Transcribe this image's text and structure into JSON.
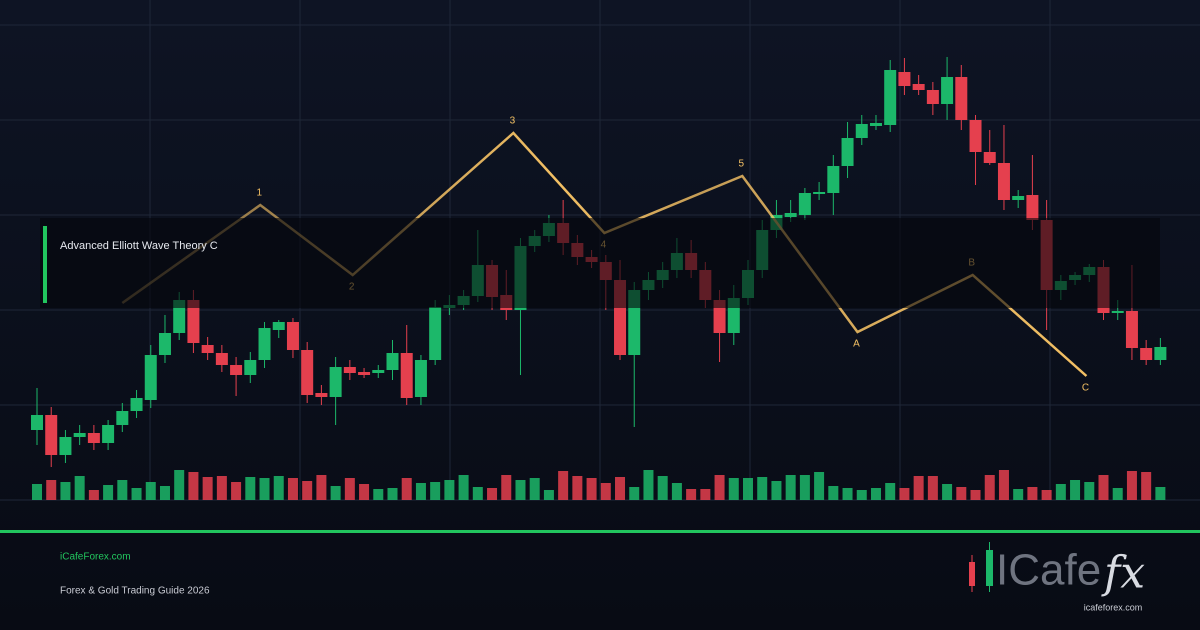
{
  "chart_data": {
    "type": "candlestick",
    "overlay_title": "Advanced Elliott Wave Theory C",
    "up_color": "#1cb86a",
    "down_color": "#e5404e",
    "open": [
      70,
      85,
      45,
      63,
      67,
      57,
      75,
      89,
      100,
      145,
      167,
      200,
      155,
      147,
      135,
      125,
      140,
      170,
      178,
      150,
      107,
      103,
      133,
      128,
      127,
      130,
      147,
      103,
      140,
      192,
      195,
      204,
      235,
      205,
      190,
      254,
      264,
      277,
      257,
      243,
      238,
      220,
      145,
      210,
      220,
      230,
      247,
      230,
      200,
      167,
      202,
      230,
      270,
      283,
      285,
      306,
      307,
      334,
      362,
      374,
      375,
      428,
      416,
      410,
      396,
      423,
      380,
      348,
      337,
      300,
      305,
      280,
      210,
      220,
      225,
      233,
      187,
      189,
      152,
      140
    ],
    "high": [
      112,
      93,
      70,
      75,
      75,
      80,
      97,
      110,
      155,
      185,
      208,
      210,
      163,
      155,
      143,
      148,
      178,
      180,
      182,
      158,
      115,
      143,
      140,
      132,
      135,
      160,
      175,
      145,
      200,
      205,
      210,
      270,
      240,
      230,
      262,
      270,
      285,
      300,
      265,
      250,
      245,
      240,
      218,
      228,
      238,
      262,
      260,
      238,
      210,
      215,
      240,
      280,
      300,
      300,
      312,
      318,
      345,
      378,
      385,
      385,
      440,
      442,
      425,
      418,
      443,
      435,
      385,
      370,
      375,
      310,
      345,
      300,
      225,
      228,
      236,
      240,
      200,
      235,
      160,
      162
    ],
    "low": [
      55,
      33,
      37,
      55,
      50,
      50,
      68,
      82,
      92,
      137,
      160,
      147,
      140,
      128,
      104,
      117,
      132,
      162,
      142,
      97,
      95,
      75,
      120,
      122,
      122,
      120,
      95,
      95,
      135,
      185,
      190,
      198,
      190,
      180,
      125,
      248,
      258,
      245,
      235,
      232,
      190,
      140,
      73,
      200,
      212,
      222,
      222,
      192,
      138,
      155,
      195,
      222,
      262,
      278,
      280,
      300,
      285,
      322,
      355,
      370,
      368,
      405,
      405,
      385,
      380,
      370,
      315,
      335,
      290,
      292,
      270,
      170,
      200,
      215,
      218,
      180,
      180,
      140,
      135,
      135
    ],
    "close": [
      85,
      45,
      63,
      67,
      57,
      75,
      89,
      102,
      145,
      167,
      200,
      157,
      147,
      135,
      125,
      140,
      172,
      178,
      150,
      105,
      103,
      133,
      127,
      125,
      130,
      147,
      102,
      140,
      193,
      195,
      204,
      235,
      203,
      190,
      254,
      264,
      277,
      257,
      243,
      238,
      220,
      145,
      210,
      220,
      230,
      247,
      230,
      200,
      167,
      202,
      230,
      270,
      285,
      287,
      307,
      308,
      334,
      362,
      376,
      377,
      430,
      414,
      410,
      396,
      423,
      380,
      348,
      337,
      300,
      304,
      280,
      210,
      219,
      225,
      233,
      187,
      189,
      152,
      140,
      153
    ],
    "volume": [
      16,
      20,
      18,
      24,
      10,
      15,
      20,
      12,
      18,
      14,
      30,
      28,
      23,
      24,
      18,
      23,
      22,
      24,
      22,
      19,
      25,
      14,
      22,
      16,
      11,
      12,
      22,
      17,
      18,
      20,
      25,
      13,
      12,
      25,
      20,
      22,
      10,
      29,
      24,
      22,
      17,
      23,
      13,
      30,
      24,
      17,
      11,
      11,
      25,
      22,
      22,
      23,
      19,
      25,
      25,
      28,
      14,
      12,
      10,
      12,
      17,
      12,
      24,
      24,
      16,
      13,
      10,
      25,
      30,
      11,
      13,
      10,
      16,
      20,
      18,
      25,
      12,
      29,
      28,
      13
    ],
    "wave": {
      "color": "#f3c064",
      "labels": [
        null,
        "1",
        "2",
        "3",
        "4",
        "5",
        "A",
        "B",
        "C"
      ],
      "x": [
        6,
        15.7,
        22.2,
        33.5,
        39.9,
        49.6,
        57.7,
        65.8,
        73.8
      ],
      "y": [
        197,
        295,
        225,
        367,
        267,
        324,
        168,
        225,
        124
      ]
    }
  },
  "footer": {
    "site": "iCafeForex.com",
    "tagline": "Forex & Gold Trading Guide 2026"
  },
  "logo": {
    "word": "ICafe",
    "suffix": "fx",
    "url": "icafeforex.com"
  }
}
